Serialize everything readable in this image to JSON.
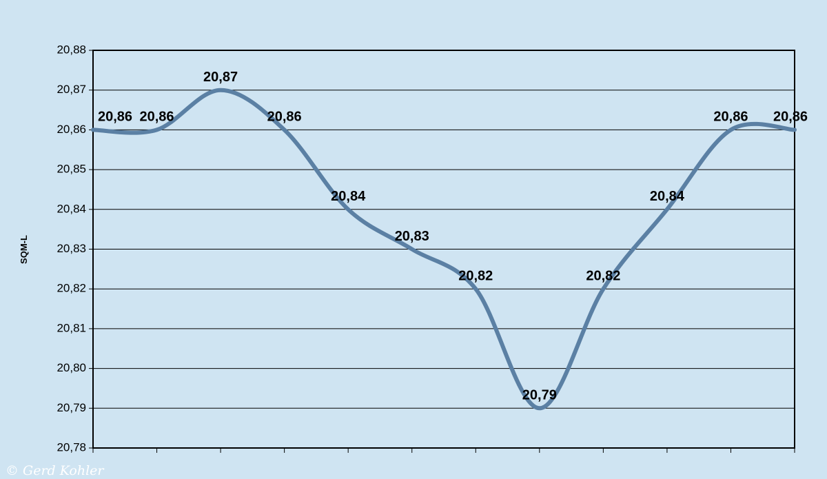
{
  "chart_data": {
    "type": "line",
    "title": "",
    "xlabel": "",
    "ylabel": "SQM-L",
    "ylim": [
      20.78,
      20.88
    ],
    "yticks": [
      "20,88",
      "20,87",
      "20,86",
      "20,85",
      "20,84",
      "20,83",
      "20,82",
      "20,81",
      "20,80",
      "20,79",
      "20,78"
    ],
    "x_categories": 12,
    "series": [
      {
        "values": [
          20.86,
          20.86,
          20.87,
          20.86,
          20.84,
          20.83,
          20.82,
          20.79,
          20.82,
          20.84,
          20.86,
          20.86
        ],
        "labels": [
          "20,86",
          "20,86",
          "20,87",
          "20,86",
          "20,84",
          "20,83",
          "20,82",
          "20,79",
          "20,82",
          "20,84",
          "20,86",
          "20,86"
        ],
        "color": "#5b80a4"
      }
    ],
    "grid": true,
    "legend": "none"
  },
  "watermark": "© Gerd Kohler",
  "colors": {
    "background": "#cfe4f2",
    "plot_area": "#cfe4f2",
    "line": "#5b80a4",
    "axis": "#000000"
  }
}
